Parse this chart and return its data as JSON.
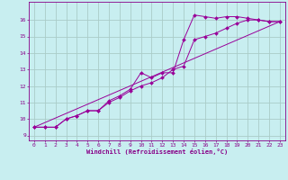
{
  "title": "",
  "xlabel": "Windchill (Refroidissement éolien,°C)",
  "bg_color": "#c8eef0",
  "grid_color": "#aaccc8",
  "line_color": "#990099",
  "xlim": [
    -0.5,
    23.5
  ],
  "ylim": [
    8.7,
    17.1
  ],
  "yticks": [
    9,
    10,
    11,
    12,
    13,
    14,
    15,
    16
  ],
  "xticks": [
    0,
    1,
    2,
    3,
    4,
    5,
    6,
    7,
    8,
    9,
    10,
    11,
    12,
    13,
    14,
    15,
    16,
    17,
    18,
    19,
    20,
    21,
    22,
    23
  ],
  "series1_x": [
    0,
    1,
    2,
    3,
    4,
    5,
    6,
    7,
    8,
    9,
    10,
    11,
    12,
    13,
    14,
    15,
    16,
    17,
    18,
    19,
    20,
    21,
    22,
    23
  ],
  "series1_y": [
    9.5,
    9.5,
    9.5,
    10.0,
    10.2,
    10.5,
    10.5,
    11.1,
    11.4,
    11.8,
    12.8,
    12.5,
    12.8,
    12.8,
    14.8,
    16.3,
    16.2,
    16.1,
    16.2,
    16.2,
    16.1,
    16.0,
    15.9,
    15.9
  ],
  "series2_x": [
    0,
    1,
    2,
    3,
    4,
    5,
    6,
    7,
    8,
    9,
    10,
    11,
    12,
    13,
    14,
    15,
    16,
    17,
    18,
    19,
    20,
    21,
    22,
    23
  ],
  "series2_y": [
    9.5,
    9.5,
    9.5,
    10.0,
    10.2,
    10.5,
    10.5,
    11.0,
    11.3,
    11.7,
    12.0,
    12.2,
    12.5,
    13.0,
    13.2,
    14.8,
    15.0,
    15.2,
    15.5,
    15.8,
    16.0,
    16.0,
    15.9,
    15.9
  ],
  "series3_x": [
    0,
    23
  ],
  "series3_y": [
    9.5,
    15.9
  ]
}
